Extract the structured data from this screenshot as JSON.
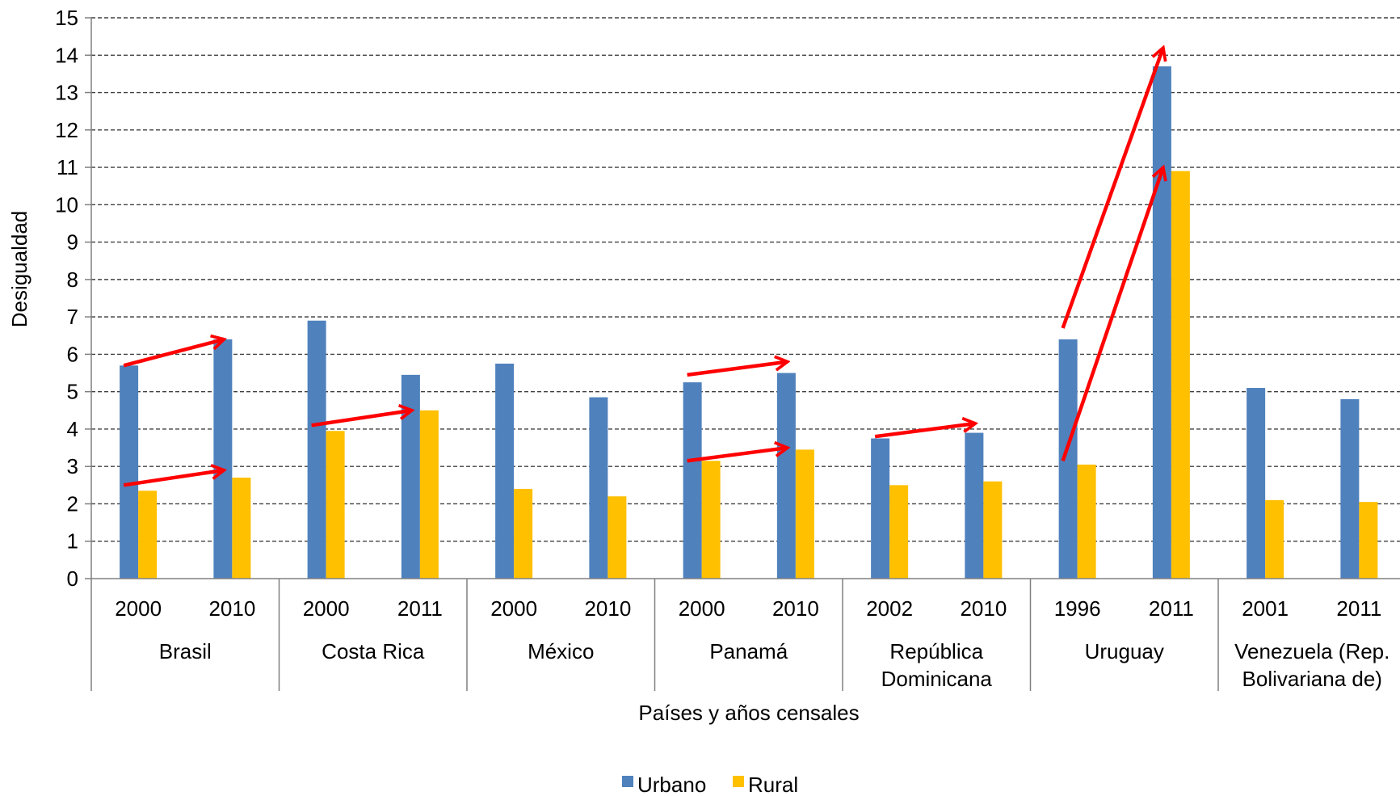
{
  "chart_data": {
    "type": "bar",
    "xlabel": "Países  y años censales",
    "ylabel": "Desigualdad",
    "ylim": [
      0,
      15
    ],
    "yticks": [
      "0",
      "1",
      "2",
      "3",
      "4",
      "5",
      "6",
      "7",
      "8",
      "9",
      "10",
      "11",
      "12",
      "13",
      "14",
      "15"
    ],
    "grid": true,
    "legend_position": "bottom",
    "groups": [
      {
        "country": [
          "Brasil"
        ],
        "years": [
          "2000",
          "2010"
        ]
      },
      {
        "country": [
          "Costa Rica"
        ],
        "years": [
          "2000",
          "2011"
        ]
      },
      {
        "country": [
          "México"
        ],
        "years": [
          "2000",
          "2010"
        ]
      },
      {
        "country": [
          "Panamá"
        ],
        "years": [
          "2000",
          "2010"
        ]
      },
      {
        "country": [
          "República",
          "Dominicana"
        ],
        "years": [
          "2002",
          "2010"
        ]
      },
      {
        "country": [
          "Uruguay"
        ],
        "years": [
          "1996",
          "2011"
        ]
      },
      {
        "country": [
          "Venezuela (Rep.",
          "Bolivariana de)"
        ],
        "years": [
          "2001",
          "2011"
        ]
      }
    ],
    "series": [
      {
        "name": "Urbano",
        "color": "#4F81BD",
        "values": [
          5.7,
          6.4,
          6.9,
          5.45,
          5.75,
          4.85,
          5.25,
          5.5,
          3.75,
          3.9,
          6.4,
          13.7,
          5.1,
          4.8
        ]
      },
      {
        "name": "Rural",
        "color": "#FFC000",
        "values": [
          2.35,
          2.7,
          3.95,
          4.5,
          2.4,
          2.2,
          3.15,
          3.45,
          2.5,
          2.6,
          3.05,
          10.9,
          2.1,
          2.05
        ]
      }
    ],
    "annotations": {
      "arrow_color": "#FF0000",
      "arrows": [
        {
          "from": [
            0,
            5.7
          ],
          "to": [
            1,
            6.4
          ]
        },
        {
          "from": [
            0,
            2.5
          ],
          "to": [
            1,
            2.9
          ]
        },
        {
          "from": [
            2,
            4.1
          ],
          "to": [
            3,
            4.5
          ]
        },
        {
          "from": [
            6,
            5.45
          ],
          "to": [
            7,
            5.8
          ]
        },
        {
          "from": [
            6,
            3.15
          ],
          "to": [
            7,
            3.5
          ]
        },
        {
          "from": [
            8,
            3.8
          ],
          "to": [
            9,
            4.15
          ]
        },
        {
          "from": [
            10,
            6.7
          ],
          "to": [
            11,
            14.2
          ]
        },
        {
          "from": [
            10,
            3.15
          ],
          "to": [
            11,
            11.0
          ]
        }
      ]
    }
  }
}
